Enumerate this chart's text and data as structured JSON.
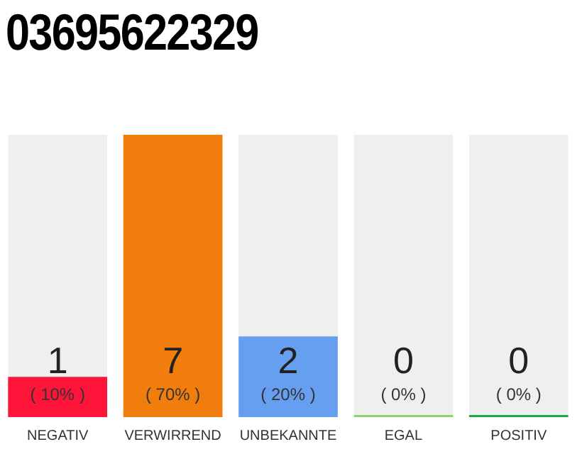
{
  "chart_data": {
    "type": "bar",
    "title": "03695622329",
    "categories": [
      "NEGATIV",
      "VERWIRREND",
      "UNBEKANNTE",
      "EGAL",
      "POSITIV"
    ],
    "values": [
      1,
      7,
      2,
      0,
      0
    ],
    "colors": [
      "#ff1439",
      "#f07d0c",
      "#669ff0",
      "#8bd36a",
      "#22aa44"
    ],
    "ylim": [
      0,
      7
    ],
    "tick_labels": "x",
    "grid": false,
    "legend": false,
    "data_labels": true,
    "annotations": [
      "( 10% )",
      "( 70% )",
      "( 20% )",
      "( 0% )",
      "( 0% )"
    ]
  }
}
